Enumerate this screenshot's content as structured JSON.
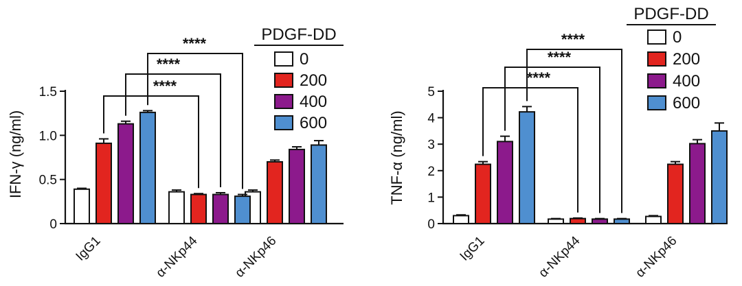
{
  "colors": {
    "0": "#ffffff",
    "200": "#e2251f",
    "400": "#8c1a8c",
    "600": "#4f8fd0"
  },
  "chart_data": [
    {
      "type": "bar",
      "ylabel": "IFN-γ (ng/ml)",
      "ylim": [
        0,
        1.5
      ],
      "yticks": [
        0,
        0.5,
        1.0,
        1.5
      ],
      "ytick_labels": [
        "0",
        "0.5",
        "1.0",
        "1.5"
      ],
      "categories": [
        "IgG1",
        "α-NKp44",
        "α-NKp46"
      ],
      "legend_title": "PDGF-DD",
      "legend_placement": "top-right",
      "series": [
        {
          "name": "0",
          "color_key": "0",
          "values": [
            0.39,
            0.36,
            0.36
          ],
          "errors": [
            0.01,
            0.02,
            0.02
          ]
        },
        {
          "name": "200",
          "color_key": "200",
          "values": [
            0.91,
            0.33,
            0.7
          ],
          "errors": [
            0.05,
            0.01,
            0.02
          ]
        },
        {
          "name": "400",
          "color_key": "400",
          "values": [
            1.13,
            0.33,
            0.84
          ],
          "errors": [
            0.03,
            0.02,
            0.03
          ]
        },
        {
          "name": "600",
          "color_key": "600",
          "values": [
            1.26,
            0.31,
            0.89
          ],
          "errors": [
            0.02,
            0.02,
            0.05
          ]
        }
      ],
      "significance": [
        {
          "from_series": 1,
          "from_cat": 0,
          "to_cat": 1,
          "label": "****"
        },
        {
          "from_series": 2,
          "from_cat": 0,
          "to_cat": 1,
          "label": "****"
        },
        {
          "from_series": 3,
          "from_cat": 0,
          "to_cat": 1,
          "label": "****"
        }
      ]
    },
    {
      "type": "bar",
      "ylabel": "TNF-α (ng/ml)",
      "ylim": [
        0,
        5
      ],
      "yticks": [
        0,
        1,
        2,
        3,
        4,
        5
      ],
      "ytick_labels": [
        "0",
        "1",
        "2",
        "3",
        "4",
        "5"
      ],
      "categories": [
        "IgG1",
        "α-NKp44",
        "α-NKp46"
      ],
      "legend_title": "PDGF-DD",
      "legend_placement": "top-right",
      "series": [
        {
          "name": "0",
          "color_key": "0",
          "values": [
            0.3,
            0.17,
            0.27
          ],
          "errors": [
            0.03,
            0.02,
            0.03
          ]
        },
        {
          "name": "200",
          "color_key": "200",
          "values": [
            2.24,
            0.19,
            2.24
          ],
          "errors": [
            0.1,
            0.02,
            0.1
          ]
        },
        {
          "name": "400",
          "color_key": "400",
          "values": [
            3.1,
            0.17,
            3.02
          ],
          "errors": [
            0.2,
            0.02,
            0.15
          ]
        },
        {
          "name": "600",
          "color_key": "600",
          "values": [
            4.22,
            0.17,
            3.5
          ],
          "errors": [
            0.2,
            0.02,
            0.3
          ]
        }
      ],
      "significance": [
        {
          "from_series": 1,
          "from_cat": 0,
          "to_cat": 1,
          "label": "****"
        },
        {
          "from_series": 2,
          "from_cat": 0,
          "to_cat": 1,
          "label": "****"
        },
        {
          "from_series": 3,
          "from_cat": 0,
          "to_cat": 1,
          "label": "****"
        }
      ]
    }
  ]
}
